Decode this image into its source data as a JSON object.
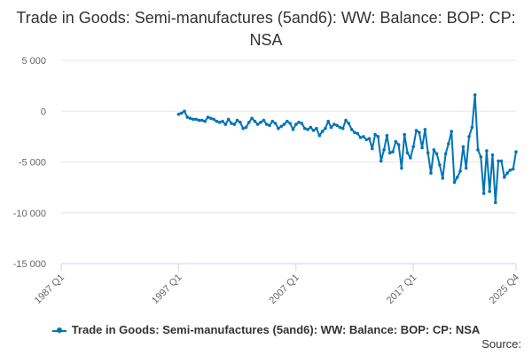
{
  "chart_data": {
    "type": "line",
    "title": "Trade in Goods: Semi-manufactures (5and6): WW: Balance: BOP: CP: NSA",
    "xlabel": "",
    "ylabel": "",
    "x_range": [
      1987.0,
      2025.75
    ],
    "x_tick_labels": [
      "1987 Q1",
      "1997 Q1",
      "2007 Q1",
      "2017 Q1",
      "2025 Q4"
    ],
    "x_tick_values": [
      1987.0,
      1997.0,
      2007.0,
      2017.0,
      2025.75
    ],
    "ylim": [
      -15000,
      5000
    ],
    "y_tick_values": [
      5000,
      0,
      -5000,
      -10000,
      -15000
    ],
    "y_tick_labels": [
      "5 000",
      "0",
      "-5 000",
      "-10 000",
      "-15 000"
    ],
    "grid": "horizontal",
    "legend_position": "bottom",
    "series": [
      {
        "name": "Trade in Goods: Semi-manufactures (5and6): WW: Balance: BOP: CP: NSA",
        "color": "#0074b7",
        "points": [
          [
            1997.0,
            -300
          ],
          [
            1997.25,
            -200
          ],
          [
            1997.5,
            0
          ],
          [
            1997.75,
            -600
          ],
          [
            1998.0,
            -700
          ],
          [
            1998.25,
            -800
          ],
          [
            1998.5,
            -800
          ],
          [
            1998.75,
            -900
          ],
          [
            1999.0,
            -900
          ],
          [
            1999.25,
            -1000
          ],
          [
            1999.5,
            -600
          ],
          [
            1999.75,
            -700
          ],
          [
            2000.0,
            -800
          ],
          [
            2000.25,
            -1000
          ],
          [
            2000.5,
            -1100
          ],
          [
            2000.75,
            -1000
          ],
          [
            2001.0,
            -1300
          ],
          [
            2001.25,
            -800
          ],
          [
            2001.5,
            -1200
          ],
          [
            2001.75,
            -1300
          ],
          [
            2002.0,
            -900
          ],
          [
            2002.25,
            -1100
          ],
          [
            2002.5,
            -1700
          ],
          [
            2002.75,
            -1600
          ],
          [
            2003.0,
            -1100
          ],
          [
            2003.25,
            -700
          ],
          [
            2003.5,
            -1000
          ],
          [
            2003.75,
            -1300
          ],
          [
            2004.0,
            -1100
          ],
          [
            2004.25,
            -900
          ],
          [
            2004.5,
            -1300
          ],
          [
            2004.75,
            -1400
          ],
          [
            2005.0,
            -1000
          ],
          [
            2005.25,
            -1200
          ],
          [
            2005.5,
            -1700
          ],
          [
            2005.75,
            -1500
          ],
          [
            2006.0,
            -1300
          ],
          [
            2006.25,
            -1000
          ],
          [
            2006.5,
            -1200
          ],
          [
            2006.75,
            -1800
          ],
          [
            2007.0,
            -1300
          ],
          [
            2007.25,
            -1100
          ],
          [
            2007.5,
            -1200
          ],
          [
            2007.75,
            -1700
          ],
          [
            2008.0,
            -1800
          ],
          [
            2008.25,
            -1600
          ],
          [
            2008.5,
            -1900
          ],
          [
            2008.75,
            -1700
          ],
          [
            2009.0,
            -2400
          ],
          [
            2009.25,
            -2000
          ],
          [
            2009.5,
            -1700
          ],
          [
            2009.75,
            -1000
          ],
          [
            2010.0,
            -1600
          ],
          [
            2010.25,
            -1300
          ],
          [
            2010.5,
            -1400
          ],
          [
            2010.75,
            -1600
          ],
          [
            2011.0,
            -1700
          ],
          [
            2011.25,
            -900
          ],
          [
            2011.5,
            -1200
          ],
          [
            2011.75,
            -1800
          ],
          [
            2012.0,
            -2100
          ],
          [
            2012.25,
            -2200
          ],
          [
            2012.5,
            -2600
          ],
          [
            2012.75,
            -2500
          ],
          [
            2013.0,
            -2800
          ],
          [
            2013.25,
            -2700
          ],
          [
            2013.5,
            -3700
          ],
          [
            2013.75,
            -2300
          ],
          [
            2014.0,
            -2500
          ],
          [
            2014.25,
            -4900
          ],
          [
            2014.5,
            -3800
          ],
          [
            2014.75,
            -2400
          ],
          [
            2015.0,
            -4100
          ],
          [
            2015.25,
            -4000
          ],
          [
            2015.5,
            -3000
          ],
          [
            2015.75,
            -3300
          ],
          [
            2016.0,
            -5600
          ],
          [
            2016.25,
            -2300
          ],
          [
            2016.5,
            -4100
          ],
          [
            2016.75,
            -4600
          ],
          [
            2017.0,
            -3500
          ],
          [
            2017.25,
            -1900
          ],
          [
            2017.5,
            -2100
          ],
          [
            2017.75,
            -3600
          ],
          [
            2018.0,
            -1800
          ],
          [
            2018.25,
            -4100
          ],
          [
            2018.5,
            -6100
          ],
          [
            2018.75,
            -3800
          ],
          [
            2019.0,
            -4200
          ],
          [
            2019.25,
            -5300
          ],
          [
            2019.5,
            -6600
          ],
          [
            2019.75,
            -4200
          ],
          [
            2020.0,
            -3200
          ],
          [
            2020.25,
            -2000
          ],
          [
            2020.5,
            -7000
          ],
          [
            2020.75,
            -6500
          ],
          [
            2021.0,
            -5900
          ],
          [
            2021.25,
            -3500
          ],
          [
            2021.5,
            -5600
          ],
          [
            2021.75,
            -2500
          ],
          [
            2022.0,
            -1600
          ],
          [
            2022.25,
            1600
          ],
          [
            2022.5,
            -3800
          ],
          [
            2022.75,
            -4500
          ],
          [
            2023.0,
            -8100
          ],
          [
            2023.25,
            -3900
          ],
          [
            2023.5,
            -7900
          ],
          [
            2023.75,
            -4300
          ],
          [
            2024.0,
            -9000
          ],
          [
            2024.25,
            -4900
          ],
          [
            2024.5,
            -4900
          ],
          [
            2024.75,
            -6500
          ],
          [
            2025.0,
            -6100
          ],
          [
            2025.25,
            -5800
          ],
          [
            2025.5,
            -5700
          ],
          [
            2025.75,
            -4000
          ]
        ]
      }
    ]
  },
  "legend": {
    "label": "Trade in Goods: Semi-manufactures (5and6): WW: Balance: BOP: CP: NSA"
  },
  "source": {
    "label": "Source:"
  }
}
